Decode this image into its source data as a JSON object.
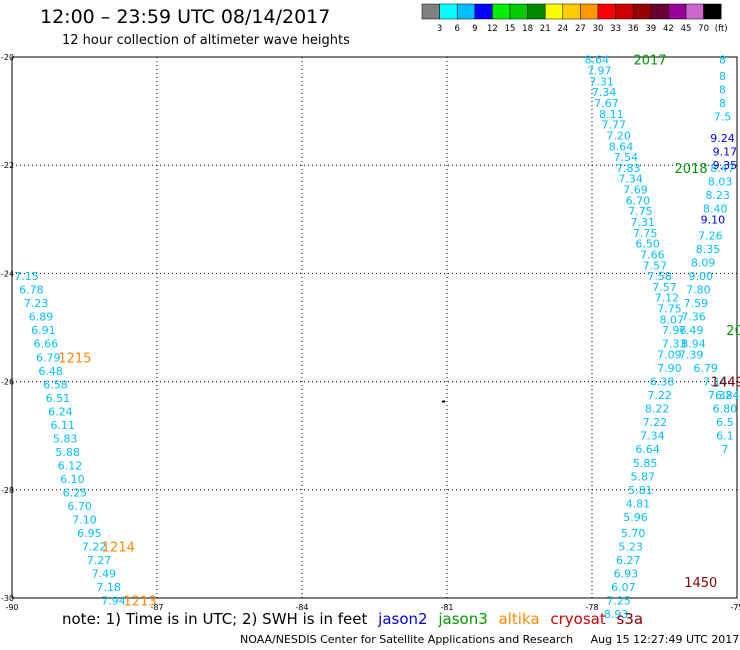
{
  "header": {
    "title": "12:00 – 23:59 UTC 08/14/2017",
    "subtitle": "12 hour collection of altimeter wave heights"
  },
  "colorbar": {
    "colors": [
      "#808080",
      "#00ffff",
      "#00bfff",
      "#0000ff",
      "#00ee00",
      "#00cc00",
      "#008800",
      "#ffff00",
      "#ffcc00",
      "#ff9900",
      "#ff0000",
      "#cc0000",
      "#990000",
      "#660033",
      "#990099",
      "#cc66cc",
      "#000000"
    ],
    "labels": [
      "3",
      "6",
      "9",
      "12",
      "15",
      "18",
      "21",
      "24",
      "27",
      "30",
      "33",
      "36",
      "39",
      "42",
      "45",
      "70",
      "(ft)"
    ]
  },
  "legend": {
    "note": "note: 1) Time is in UTC; 2) SWH is in feet",
    "satellites": [
      {
        "name": "jason2",
        "color": "#0000cc"
      },
      {
        "name": "jason3",
        "color": "#009900"
      },
      {
        "name": "altika",
        "color": "#ff8800"
      },
      {
        "name": "cryosat",
        "color": "#cc0000"
      },
      {
        "name": "s3a",
        "color": "#880000"
      }
    ]
  },
  "footer": {
    "credit": "NOAA/NESDIS Center for Satellite Applications and Research",
    "timestamp": "Aug 15 12:27:49 UTC 2017"
  },
  "chart_data": {
    "type": "scatter",
    "xlim": [
      -90,
      -75
    ],
    "ylim": [
      -30,
      -20
    ],
    "x_ticks": [
      "-90",
      "-87",
      "-84",
      "-81",
      "-78",
      "-75"
    ],
    "y_ticks": [
      "-20",
      "-22",
      "-24",
      "-26",
      "-28",
      "-30"
    ],
    "grid": true,
    "tracks": [
      {
        "color": "#00bfff",
        "points": [
          {
            "x": -89.7,
            "y": -24.05,
            "v": "7.15"
          },
          {
            "x": -89.6,
            "y": -24.3,
            "v": "6.78"
          },
          {
            "x": -89.5,
            "y": -24.55,
            "v": "7.23"
          },
          {
            "x": -89.4,
            "y": -24.8,
            "v": "6.89"
          },
          {
            "x": -89.35,
            "y": -25.05,
            "v": "6.91"
          },
          {
            "x": -89.3,
            "y": -25.3,
            "v": "6.66"
          },
          {
            "x": -89.25,
            "y": -25.55,
            "v": "6.79"
          },
          {
            "x": -89.2,
            "y": -25.8,
            "v": "6.48"
          },
          {
            "x": -89.1,
            "y": -26.05,
            "v": "6.58"
          },
          {
            "x": -89.05,
            "y": -26.3,
            "v": "6.51"
          },
          {
            "x": -89.0,
            "y": -26.55,
            "v": "6.24"
          },
          {
            "x": -88.95,
            "y": -26.8,
            "v": "6.11"
          },
          {
            "x": -88.9,
            "y": -27.05,
            "v": "5.83"
          },
          {
            "x": -88.85,
            "y": -27.3,
            "v": "5.88"
          },
          {
            "x": -88.8,
            "y": -27.55,
            "v": "6.12"
          },
          {
            "x": -88.75,
            "y": -27.8,
            "v": "6.10"
          },
          {
            "x": -88.7,
            "y": -28.05,
            "v": "6.25"
          },
          {
            "x": -88.6,
            "y": -28.3,
            "v": "6.70"
          },
          {
            "x": -88.5,
            "y": -28.55,
            "v": "7.10"
          },
          {
            "x": -88.4,
            "y": -28.8,
            "v": "6.95"
          },
          {
            "x": -88.3,
            "y": -29.05,
            "v": "7.22"
          },
          {
            "x": -88.2,
            "y": -29.3,
            "v": "7.27"
          },
          {
            "x": -88.1,
            "y": -29.55,
            "v": "7.49"
          },
          {
            "x": -88.0,
            "y": -29.8,
            "v": "7.18"
          },
          {
            "x": -87.9,
            "y": -30.05,
            "v": "7.94"
          }
        ],
        "time_labels": [
          {
            "x": -88.7,
            "y": -25.55,
            "t": "1215",
            "color": "#ff8800"
          },
          {
            "x": -87.8,
            "y": -29.05,
            "t": "1214",
            "color": "#ff8800"
          },
          {
            "x": -87.35,
            "y": -30.05,
            "t": "1213",
            "color": "#ff8800"
          }
        ]
      },
      {
        "color": "#00bfff",
        "points": [
          {
            "x": -77.9,
            "y": -20.05,
            "v": "8.64"
          },
          {
            "x": -77.85,
            "y": -20.25,
            "v": "7.97"
          },
          {
            "x": -77.8,
            "y": -20.45,
            "v": "7.31"
          },
          {
            "x": -77.75,
            "y": -20.65,
            "v": "7.34"
          },
          {
            "x": -77.7,
            "y": -20.85,
            "v": "7.67"
          },
          {
            "x": -77.6,
            "y": -21.05,
            "v": "8.11"
          },
          {
            "x": -77.55,
            "y": -21.25,
            "v": "7.77"
          },
          {
            "x": -77.45,
            "y": -21.45,
            "v": "7.20"
          },
          {
            "x": -77.4,
            "y": -21.65,
            "v": "8.64"
          },
          {
            "x": -77.3,
            "y": -21.85,
            "v": "7.54"
          },
          {
            "x": -77.25,
            "y": -22.05,
            "v": "7.83"
          },
          {
            "x": -77.2,
            "y": -22.25,
            "v": "7.34"
          },
          {
            "x": -77.1,
            "y": -22.45,
            "v": "7.69"
          },
          {
            "x": -77.05,
            "y": -22.65,
            "v": "6.70"
          },
          {
            "x": -77.0,
            "y": -22.85,
            "v": "7.75"
          },
          {
            "x": -76.95,
            "y": -23.05,
            "v": "7.31"
          },
          {
            "x": -76.9,
            "y": -23.25,
            "v": "7.75"
          },
          {
            "x": -76.85,
            "y": -23.45,
            "v": "6.50"
          },
          {
            "x": -76.75,
            "y": -23.65,
            "v": "7.66"
          },
          {
            "x": -76.7,
            "y": -23.85,
            "v": "7.57"
          },
          {
            "x": -76.6,
            "y": -24.05,
            "v": "7.58"
          },
          {
            "x": -76.5,
            "y": -24.25,
            "v": "7.57"
          },
          {
            "x": -76.45,
            "y": -24.45,
            "v": "7.12"
          },
          {
            "x": -76.4,
            "y": -24.65,
            "v": "7.75"
          },
          {
            "x": -76.35,
            "y": -24.85,
            "v": "8.07"
          },
          {
            "x": -76.3,
            "y": -25.05,
            "v": "7.96"
          },
          {
            "x": -76.3,
            "y": -25.3,
            "v": "7.33"
          },
          {
            "x": -76.4,
            "y": -25.5,
            "v": "7.09"
          },
          {
            "x": -76.4,
            "y": -25.75,
            "v": "7.90"
          },
          {
            "x": -76.55,
            "y": -26.0,
            "v": "6.38"
          },
          {
            "x": -76.6,
            "y": -26.25,
            "v": "7.22"
          },
          {
            "x": -76.65,
            "y": -26.5,
            "v": "8.22"
          },
          {
            "x": -76.7,
            "y": -26.75,
            "v": "7.22"
          },
          {
            "x": -76.75,
            "y": -27.0,
            "v": "7.34"
          },
          {
            "x": -76.85,
            "y": -27.25,
            "v": "6.64"
          },
          {
            "x": -76.9,
            "y": -27.5,
            "v": "5.85"
          },
          {
            "x": -76.95,
            "y": -27.75,
            "v": "5.87"
          },
          {
            "x": -77.0,
            "y": -28.0,
            "v": "5.81"
          },
          {
            "x": -77.05,
            "y": -28.25,
            "v": "4.81"
          },
          {
            "x": -77.1,
            "y": -28.5,
            "v": "5.96"
          },
          {
            "x": -77.15,
            "y": -28.8,
            "v": "5.70"
          },
          {
            "x": -77.2,
            "y": -29.05,
            "v": "5.23"
          },
          {
            "x": -77.25,
            "y": -29.3,
            "v": "6.27"
          },
          {
            "x": -77.3,
            "y": -29.55,
            "v": "6.93"
          },
          {
            "x": -77.35,
            "y": -29.8,
            "v": "6.07"
          },
          {
            "x": -77.45,
            "y": -30.05,
            "v": "7.25"
          },
          {
            "x": -77.5,
            "y": -30.3,
            "v": "8.93"
          }
        ],
        "time_labels": [
          {
            "x": -76.8,
            "y": -20.05,
            "t": "2017",
            "color": "#009900"
          },
          {
            "x": -75.95,
            "y": -22.05,
            "t": "2018",
            "color": "#009900"
          },
          {
            "x": -75.75,
            "y": -29.7,
            "t": "1450",
            "color": "#880000"
          }
        ]
      },
      {
        "color": "#00bfff",
        "points": [
          {
            "x": -75.3,
            "y": -22.05,
            "v": "8.47"
          },
          {
            "x": -75.35,
            "y": -22.3,
            "v": "8.03"
          },
          {
            "x": -75.4,
            "y": -22.55,
            "v": "8.23"
          },
          {
            "x": -75.45,
            "y": -22.8,
            "v": "8.40"
          },
          {
            "x": -75.55,
            "y": -23.3,
            "v": "7.26"
          },
          {
            "x": -75.6,
            "y": -23.55,
            "v": "8.35"
          },
          {
            "x": -75.7,
            "y": -23.8,
            "v": "8.09"
          },
          {
            "x": -75.75,
            "y": -24.05,
            "v": "9.00"
          },
          {
            "x": -75.8,
            "y": -24.3,
            "v": "7.80"
          },
          {
            "x": -75.85,
            "y": -24.55,
            "v": "7.59"
          },
          {
            "x": -75.9,
            "y": -24.8,
            "v": "7.36"
          },
          {
            "x": -75.95,
            "y": -25.05,
            "v": "7.49"
          },
          {
            "x": -75.9,
            "y": -25.3,
            "v": "8.94"
          },
          {
            "x": -75.95,
            "y": -25.5,
            "v": "7.39"
          },
          {
            "x": -75.65,
            "y": -25.75,
            "v": "6.79"
          },
          {
            "x": -75.45,
            "y": -26.0,
            "v": "7.14"
          },
          {
            "x": -75.35,
            "y": -26.25,
            "v": "7.32"
          }
        ],
        "time_labels": [
          {
            "x": -75.2,
            "y": -26.0,
            "t": "1449",
            "color": "#880000"
          }
        ]
      },
      {
        "color": "#0000ff",
        "points": [
          {
            "x": -75.3,
            "y": -21.5,
            "v": "9.24"
          },
          {
            "x": -75.25,
            "y": -21.75,
            "v": "9.17"
          },
          {
            "x": -75.25,
            "y": -22.0,
            "v": "9.35"
          },
          {
            "x": -75.5,
            "y": -23.0,
            "v": "9.10"
          }
        ],
        "time_labels": []
      }
    ],
    "cryosat_track": {
      "points": [
        {
          "x": -75.3,
          "y": -20.05,
          "v": "8"
        },
        {
          "x": -75.3,
          "y": -20.35,
          "v": "8"
        },
        {
          "x": -75.3,
          "y": -20.6,
          "v": "8"
        },
        {
          "x": -75.3,
          "y": -20.85,
          "v": "8"
        },
        {
          "x": -75.3,
          "y": -21.1,
          "v": "7.5"
        },
        {
          "x": -75.2,
          "y": -26.25,
          "v": "6.84"
        },
        {
          "x": -75.25,
          "y": -26.5,
          "v": "6.80"
        },
        {
          "x": -75.25,
          "y": -26.75,
          "v": "6.5"
        },
        {
          "x": -75.25,
          "y": -27.0,
          "v": "6.1"
        },
        {
          "x": -75.25,
          "y": -27.25,
          "v": "7"
        }
      ]
    },
    "edge_label": {
      "x": -75.05,
      "y": -25.05,
      "t": "20",
      "color": "#009900"
    }
  }
}
